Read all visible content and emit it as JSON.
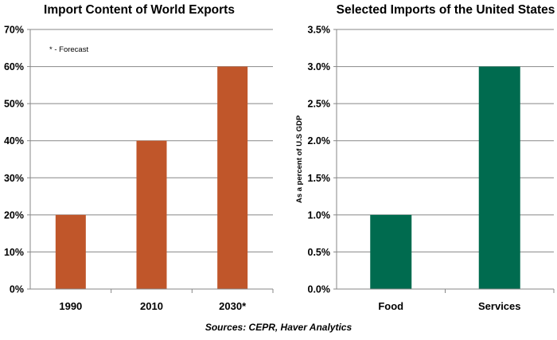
{
  "chart_data": [
    {
      "type": "bar",
      "title": "Import Content of World Exports",
      "categories": [
        "1990",
        "2010",
        "2030*"
      ],
      "values": [
        20,
        40,
        60
      ],
      "ylim": [
        0,
        70
      ],
      "yticks": [
        0,
        10,
        20,
        30,
        40,
        50,
        60,
        70
      ],
      "ytick_labels": [
        "0%",
        "10%",
        "20%",
        "30%",
        "40%",
        "50%",
        "60%",
        "70%"
      ],
      "xlabel": "",
      "ylabel": "",
      "annotation": "* - Forecast",
      "color": "#c0562a",
      "grid": true
    },
    {
      "type": "bar",
      "title": "Selected Imports of the United States",
      "categories": [
        "Food",
        "Services"
      ],
      "values": [
        1.0,
        3.0
      ],
      "ylim": [
        0,
        3.5
      ],
      "yticks": [
        0,
        0.5,
        1.0,
        1.5,
        2.0,
        2.5,
        3.0,
        3.5
      ],
      "ytick_labels": [
        "0.0%",
        "0.5%",
        "1.0%",
        "1.5%",
        "2.0%",
        "2.5%",
        "3.0%",
        "3.5%"
      ],
      "xlabel": "",
      "ylabel": "As a percent of U.S GDP",
      "color": "#006b4f",
      "grid": true
    }
  ],
  "footer": {
    "source": "Sources: CEPR, Haver Analytics"
  }
}
